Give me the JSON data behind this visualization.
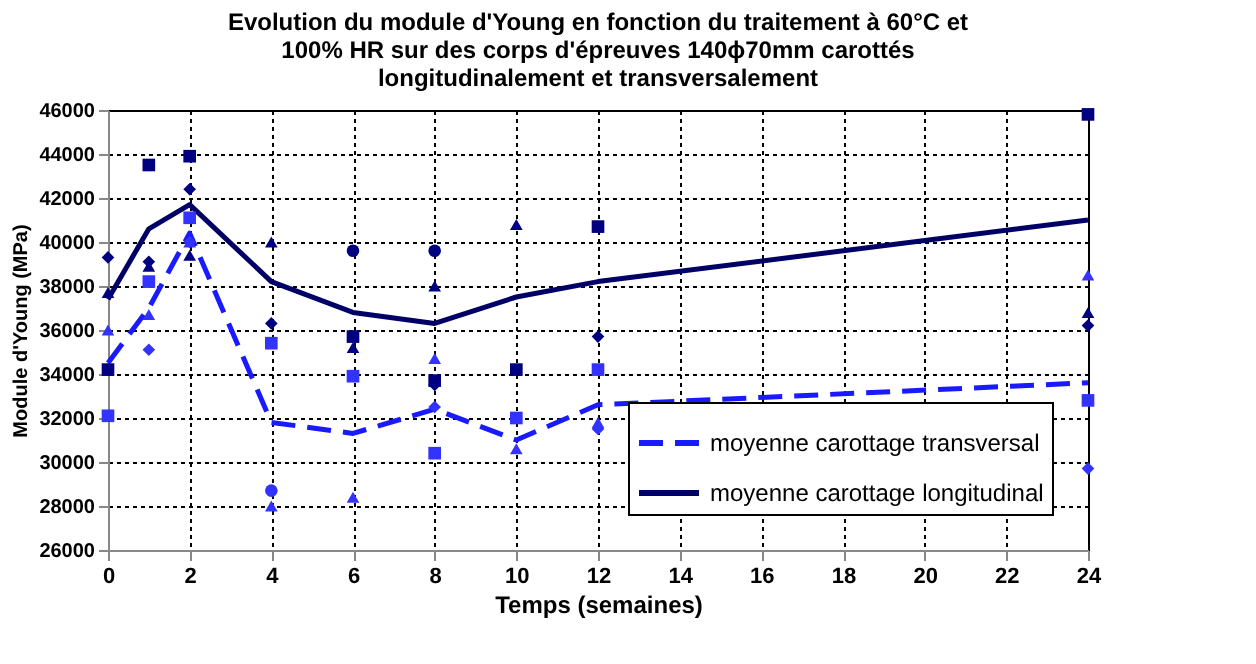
{
  "chart_data": {
    "type": "scatter",
    "title": [
      "Evolution du module d'Young en fonction du traitement à 60°C et",
      "100% HR sur des corps d'épreuves 140ϕ70mm carottés",
      "longitudinalement et transversalement"
    ],
    "xlabel": "Temps (semaines)",
    "ylabel": "Module d'Young (MPa)",
    "xlim": [
      0,
      24
    ],
    "xticks": [
      0,
      2,
      4,
      6,
      8,
      10,
      12,
      14,
      16,
      18,
      20,
      22,
      24
    ],
    "ylim": [
      26000,
      46000
    ],
    "yticks": [
      26000,
      28000,
      30000,
      32000,
      34000,
      36000,
      38000,
      40000,
      42000,
      44000,
      46000
    ],
    "grid": true,
    "legend": "bottom right",
    "series": [
      {
        "marker": "square",
        "color": "#000080",
        "x": [
          0,
          1,
          2,
          6,
          8,
          10,
          12,
          24
        ],
        "values": [
          34200,
          43500,
          43900,
          35700,
          33700,
          34200,
          40700,
          45800
        ]
      },
      {
        "marker": "diamond",
        "color": "#000080",
        "x": [
          0,
          1,
          2,
          4,
          8,
          12,
          24
        ],
        "values": [
          39300,
          39100,
          42400,
          36300,
          33500,
          35700,
          36200
        ]
      },
      {
        "marker": "triangle",
        "color": "#000080",
        "x": [
          0,
          1,
          2,
          4,
          6,
          8,
          10,
          24
        ],
        "values": [
          37700,
          38900,
          39400,
          40000,
          35200,
          38000,
          40800,
          36800
        ]
      },
      {
        "marker": "circle",
        "color": "#000080",
        "x": [
          6,
          8
        ],
        "values": [
          39600,
          39600
        ]
      },
      {
        "marker": "square",
        "color": "#3333ff",
        "x": [
          0,
          1,
          2,
          4,
          6,
          8,
          10,
          12,
          24
        ],
        "values": [
          32100,
          38200,
          41100,
          35400,
          33900,
          30400,
          32000,
          34200,
          32800
        ]
      },
      {
        "marker": "diamond",
        "color": "#3333ff",
        "x": [
          1,
          2,
          8,
          12,
          24
        ],
        "values": [
          35100,
          40000,
          32500,
          31500,
          29700
        ]
      },
      {
        "marker": "triangle",
        "color": "#3333ff",
        "x": [
          0,
          1,
          2,
          4,
          6,
          8,
          10,
          12,
          24
        ],
        "values": [
          36000,
          36700,
          40000,
          28000,
          28400,
          34700,
          30600,
          31800,
          38500
        ]
      },
      {
        "marker": "circle",
        "color": "#3333ff",
        "x": [
          4
        ],
        "values": [
          28700
        ]
      },
      {
        "type": "line",
        "name": "moyenne carottage transversal",
        "color": "#1a1aff",
        "line_style": "dashed",
        "marker": "none",
        "x": [
          0,
          1,
          2,
          4,
          6,
          8,
          10,
          12,
          24
        ],
        "values": [
          34500,
          37000,
          40400,
          31800,
          31300,
          32400,
          31000,
          32600,
          33600
        ]
      },
      {
        "type": "line",
        "name": "moyenne carottage longitudinal",
        "color": "#000066",
        "line_style": "solid",
        "marker": "none",
        "x": [
          0,
          1,
          2,
          4,
          6,
          8,
          10,
          12,
          24
        ],
        "values": [
          37400,
          40600,
          41700,
          38200,
          36800,
          36300,
          37500,
          38200,
          41000
        ]
      }
    ]
  }
}
